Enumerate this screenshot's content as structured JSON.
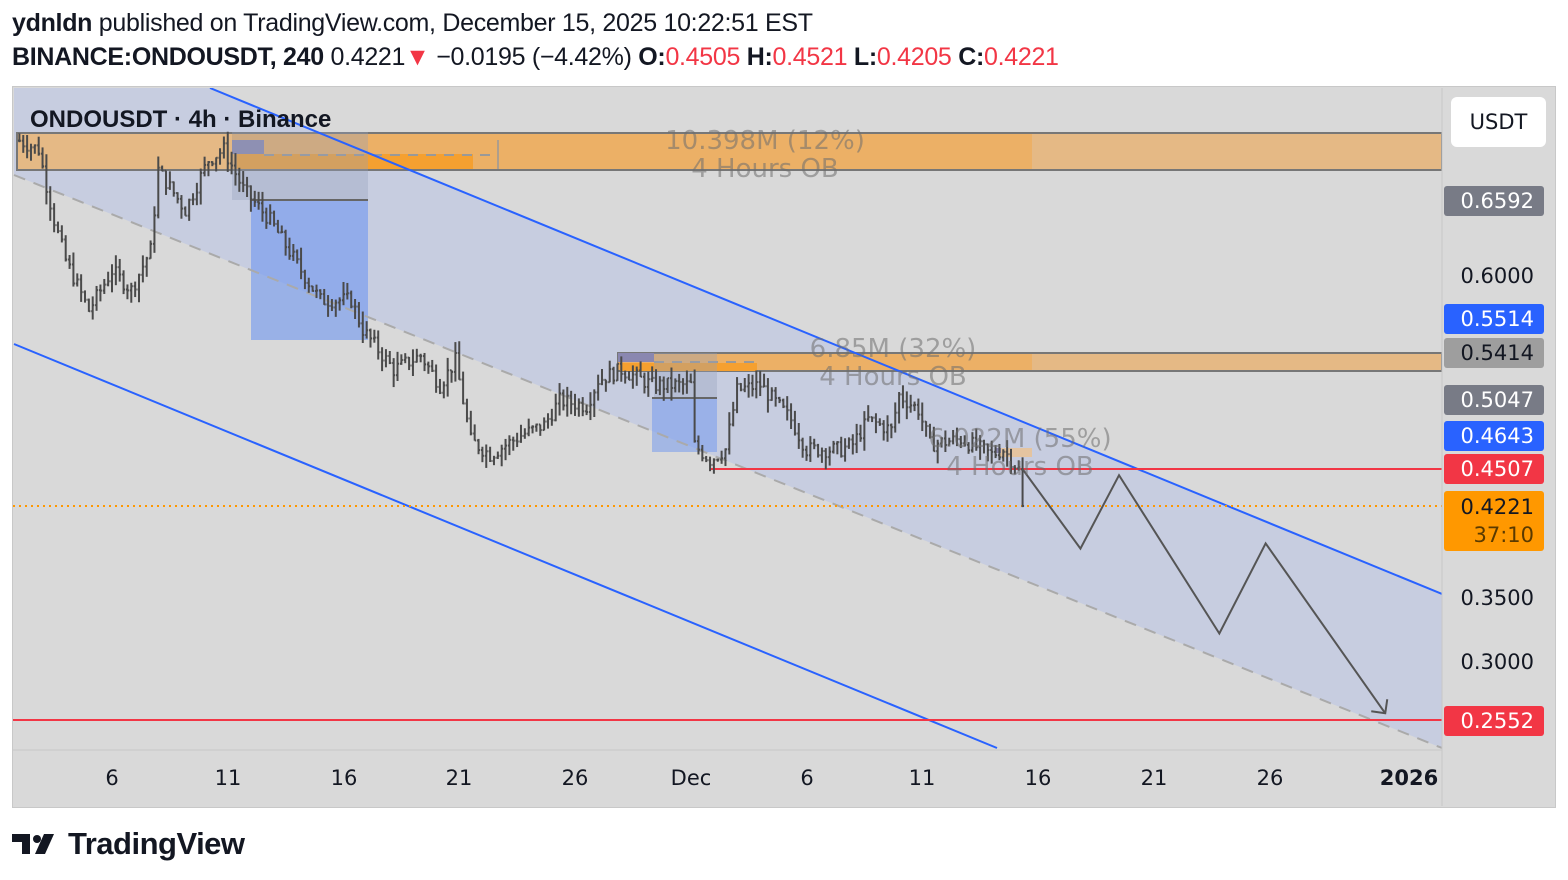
{
  "header": {
    "author": "ydnldn",
    "published_text": "published on TradingView.com, December 15, 2025 10:22:51 EST",
    "symbol": "BINANCE:ONDOUSDT, 240",
    "last": "0.4221",
    "change": "−0.0195 (−4.42%)",
    "o_label": "O:",
    "o": "0.4505",
    "h_label": "H:",
    "h": "0.4521",
    "l_label": "L:",
    "l": "0.4205",
    "c_label": "C:",
    "c": "0.4221",
    "down_icon": "triangle-down-icon"
  },
  "chart_title": "ONDOUSDT · 4h · Binance",
  "currency_button": "USDT",
  "price_ticks": [
    "0.6000",
    "0.3500",
    "0.3000"
  ],
  "price_labels": [
    {
      "value": "0.6592",
      "bg": "#787b86",
      "fg": "#ffffff"
    },
    {
      "value": "0.5514",
      "bg": "#2962ff",
      "fg": "#ffffff"
    },
    {
      "value": "0.5414",
      "bg": "#9e9e9e",
      "fg": "#131722"
    },
    {
      "value": "0.5047",
      "bg": "#787b86",
      "fg": "#ffffff"
    },
    {
      "value": "0.4643",
      "bg": "#2962ff",
      "fg": "#ffffff"
    },
    {
      "value": "0.4507",
      "bg": "#f23645",
      "fg": "#ffffff"
    },
    {
      "value": "0.2552",
      "bg": "#f23645",
      "fg": "#ffffff"
    }
  ],
  "last_price_label": {
    "value": "0.4221",
    "countdown": "37:10",
    "bg": "#ff9800"
  },
  "time_ticks": [
    "6",
    "11",
    "16",
    "21",
    "26",
    "Dec",
    "6",
    "11",
    "16",
    "21",
    "26",
    "2026"
  ],
  "order_blocks": [
    {
      "volume": "10.398M (12%)",
      "label": "4 Hours OB"
    },
    {
      "volume": "6.85M (32%)",
      "label": "4 Hours OB"
    },
    {
      "volume": "6.022M (55%)",
      "label": "4 Hours OB"
    }
  ],
  "brand": "TradingView",
  "colors": {
    "bar": "#4a4a4a",
    "channel": "#2962ff",
    "support": "#f23645",
    "last_price": "#ff9800",
    "ob": "#f0a540"
  },
  "chart_data": {
    "type": "ohlc",
    "interval": "4h",
    "ylim": [
      0.23,
      0.75
    ],
    "price_scale": "linear",
    "grid": false,
    "ohlc_last": {
      "open": 0.4505,
      "high": 0.4521,
      "low": 0.4205,
      "close": 0.4221
    },
    "price_path": [
      [
        "2025-11-02T00:00",
        0.706
      ],
      [
        "2025-11-02T20:00",
        0.699
      ],
      [
        "2025-11-03T12:00",
        0.644
      ],
      [
        "2025-11-04T00:00",
        0.613
      ],
      [
        "2025-11-05T00:00",
        0.574
      ],
      [
        "2025-11-06T00:00",
        0.605
      ],
      [
        "2025-11-06T20:00",
        0.59
      ],
      [
        "2025-11-07T16:00",
        0.621
      ],
      [
        "2025-11-08T00:00",
        0.683
      ],
      [
        "2025-11-09T04:00",
        0.652
      ],
      [
        "2025-11-10T04:00",
        0.691
      ],
      [
        "2025-11-10T20:00",
        0.699
      ],
      [
        "2025-11-11T16:00",
        0.668
      ],
      [
        "2025-11-12T20:00",
        0.644
      ],
      [
        "2025-11-14T04:00",
        0.605
      ],
      [
        "2025-11-15T00:00",
        0.582
      ],
      [
        "2025-11-16T08:00",
        0.582
      ],
      [
        "2025-11-16T20:00",
        0.559
      ],
      [
        "2025-11-18T04:00",
        0.528
      ],
      [
        "2025-11-19T08:00",
        0.539
      ],
      [
        "2025-11-20T04:00",
        0.516
      ],
      [
        "2025-11-20T20:00",
        0.535
      ],
      [
        "2025-11-21T12:00",
        0.473
      ],
      [
        "2025-11-22T08:00",
        0.462
      ],
      [
        "2025-11-23T16:00",
        0.477
      ],
      [
        "2025-11-24T16:00",
        0.485
      ],
      [
        "2025-11-25T08:00",
        0.504
      ],
      [
        "2025-11-26T12:00",
        0.5
      ],
      [
        "2025-11-27T00:00",
        0.52
      ],
      [
        "2025-11-28T00:00",
        0.528
      ],
      [
        "2025-11-29T08:00",
        0.516
      ],
      [
        "2025-12-01T00:00",
        0.516
      ],
      [
        "2025-12-01T04:00",
        0.469
      ],
      [
        "2025-12-01T20:00",
        0.458
      ],
      [
        "2025-12-02T12:00",
        0.466
      ],
      [
        "2025-12-03T00:00",
        0.512
      ],
      [
        "2025-12-04T00:00",
        0.516
      ],
      [
        "2025-12-05T08:00",
        0.489
      ],
      [
        "2025-12-06T00:00",
        0.466
      ],
      [
        "2025-12-07T12:00",
        0.466
      ],
      [
        "2025-12-08T00:00",
        0.47
      ],
      [
        "2025-12-08T16:00",
        0.489
      ],
      [
        "2025-12-09T16:00",
        0.481
      ],
      [
        "2025-12-10T00:00",
        0.508
      ],
      [
        "2025-12-10T20:00",
        0.497
      ],
      [
        "2025-12-11T08:00",
        0.47
      ],
      [
        "2025-12-12T16:00",
        0.474
      ],
      [
        "2025-12-14T00:00",
        0.462
      ],
      [
        "2025-12-14T12:00",
        0.466
      ],
      [
        "2025-12-15T04:00",
        0.4505
      ],
      [
        "2025-12-15T08:00",
        0.4221
      ]
    ],
    "projection": [
      [
        "2025-12-15T08:00",
        0.4507
      ],
      [
        "2025-12-17T20:00",
        0.389
      ],
      [
        "2025-12-19T12:00",
        0.446
      ],
      [
        "2025-12-23T20:00",
        0.323
      ],
      [
        "2025-12-25T20:00",
        0.393
      ],
      [
        "2025-12-31T00:00",
        0.261
      ]
    ],
    "levels": {
      "support_1": 0.4507,
      "support_2": 0.2552,
      "last_price": 0.4221
    }
  }
}
